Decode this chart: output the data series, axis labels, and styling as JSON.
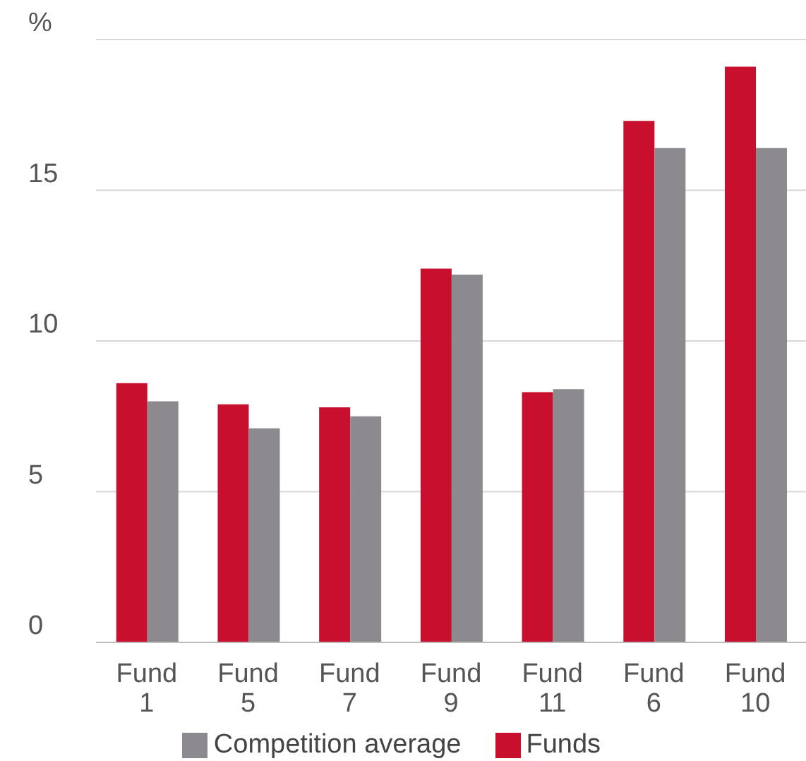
{
  "chart_data": {
    "type": "bar",
    "categories": [
      "Fund 1",
      "Fund 5",
      "Fund 7",
      "Fund 9",
      "Fund 11",
      "Fund 6",
      "Fund 10"
    ],
    "series": [
      {
        "name": "Funds",
        "color": "#c8102e",
        "values": [
          8.6,
          7.9,
          7.8,
          12.4,
          8.3,
          17.3,
          19.1
        ]
      },
      {
        "name": "Competition average",
        "color": "#8c8a8e",
        "values": [
          8.0,
          7.1,
          7.5,
          12.2,
          8.4,
          16.4,
          16.4
        ]
      }
    ],
    "ylim": [
      0,
      20
    ],
    "yticks": [
      0,
      5,
      10,
      15,
      {
        "value": 20,
        "label": "%"
      }
    ],
    "grid": "y",
    "legend": "bottom"
  }
}
